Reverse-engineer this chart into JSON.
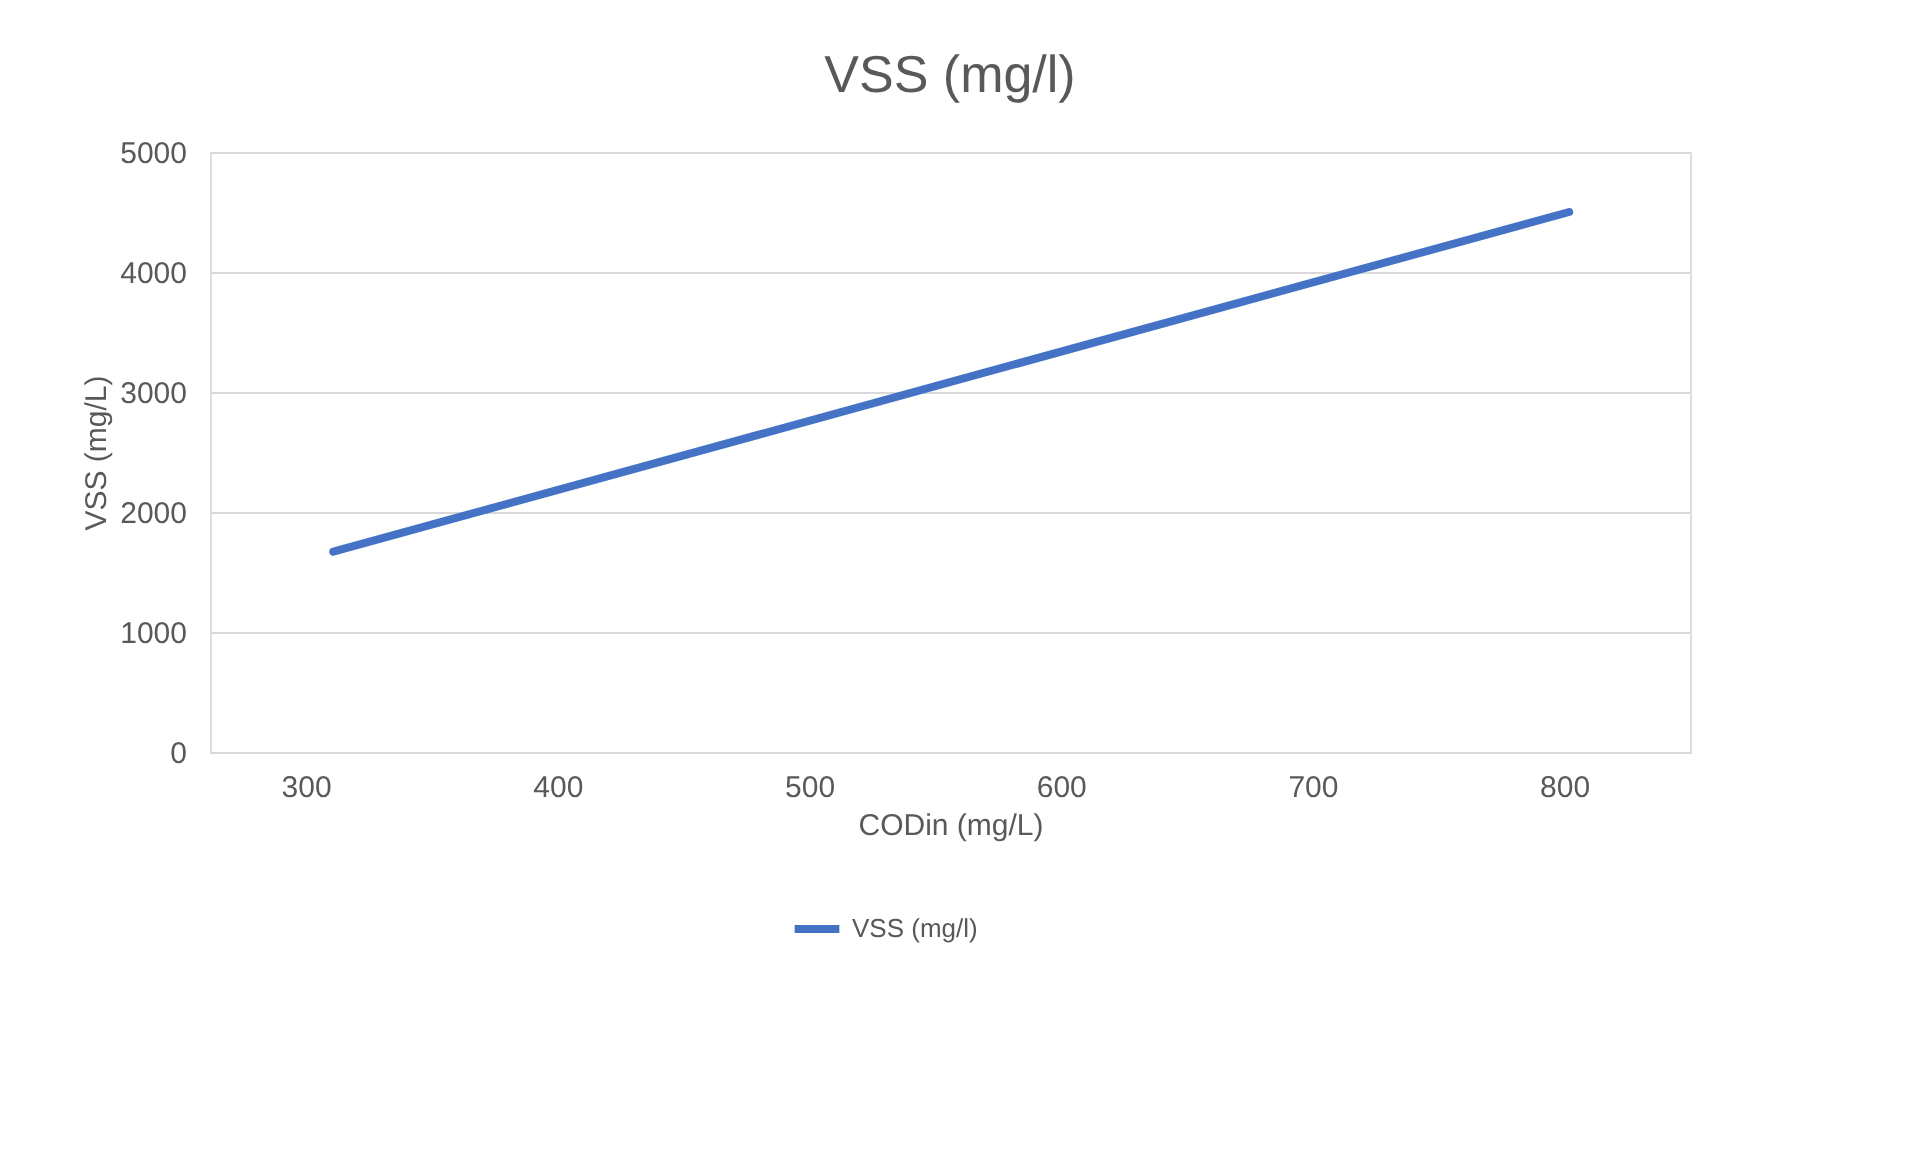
{
  "chart_data": {
    "type": "line",
    "title": "VSS (mg/l)",
    "xlabel": "CODin (mg/L)",
    "ylabel": "VSS (mg/L)",
    "x": [
      311,
      802
    ],
    "series": [
      {
        "name": "VSS (mg/l)",
        "color": "#4472c4",
        "values": [
          1670,
          4500
        ]
      }
    ],
    "xlim": [
      262,
      850
    ],
    "xticks": [
      300,
      400,
      500,
      600,
      700,
      800
    ],
    "ylim": [
      0,
      5000
    ],
    "yticks": [
      0,
      1000,
      2000,
      3000,
      4000,
      5000
    ],
    "grid": "y",
    "legend": "bottom",
    "marker": "none",
    "line_style": "solid"
  }
}
